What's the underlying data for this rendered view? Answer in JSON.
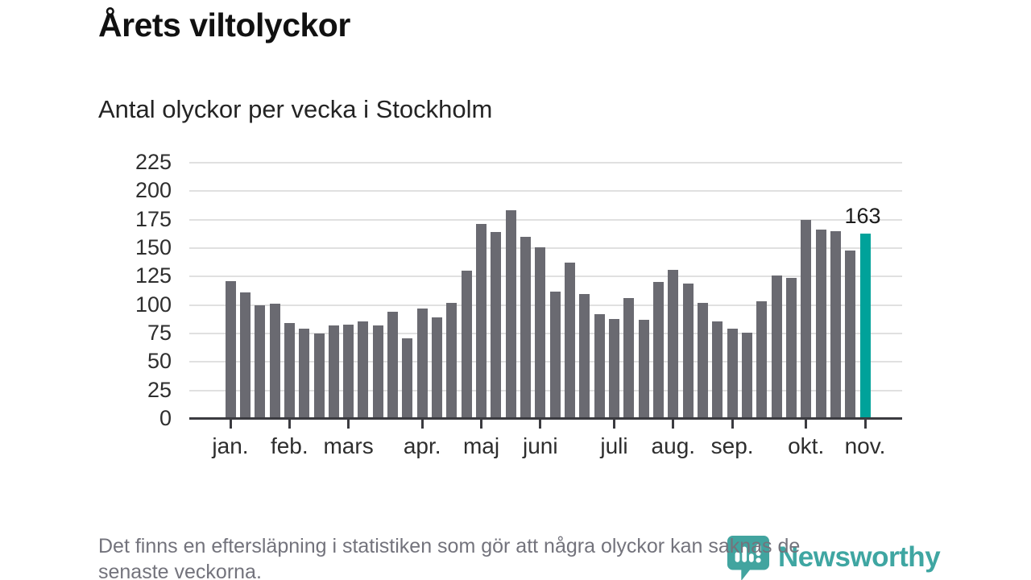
{
  "header": {
    "title": "Årets viltolyckor",
    "subtitle": "Antal olyckor per vecka i Stockholm"
  },
  "chart_data": {
    "type": "bar",
    "title": "Årets viltolyckor",
    "subtitle": "Antal olyckor per vecka i Stockholm",
    "xlabel": "",
    "ylabel": "Antal olyckor per vecka",
    "ylim": [
      0,
      225
    ],
    "ytick_step": 25,
    "yticks": [
      0,
      25,
      50,
      75,
      100,
      125,
      150,
      175,
      200,
      225
    ],
    "grid": true,
    "legend": "none",
    "bar_color": "#6a6a71",
    "highlight_color": "#00a29a",
    "values": [
      121,
      111,
      100,
      101,
      84,
      79,
      75,
      82,
      83,
      86,
      82,
      94,
      71,
      97,
      89,
      102,
      130,
      171,
      164,
      183,
      160,
      151,
      112,
      137,
      110,
      92,
      88,
      106,
      87,
      120,
      131,
      119,
      102,
      86,
      79,
      76,
      103,
      126,
      124,
      175,
      166,
      165,
      148,
      163
    ],
    "highlight_index": 43,
    "annotation": {
      "text": "163",
      "bar_index": 43
    },
    "x_months": [
      {
        "label": "jan.",
        "start_week_index": 0
      },
      {
        "label": "feb.",
        "start_week_index": 4
      },
      {
        "label": "mars",
        "start_week_index": 8
      },
      {
        "label": "apr.",
        "start_week_index": 13
      },
      {
        "label": "maj",
        "start_week_index": 17
      },
      {
        "label": "juni",
        "start_week_index": 21
      },
      {
        "label": "juli",
        "start_week_index": 26
      },
      {
        "label": "aug.",
        "start_week_index": 30
      },
      {
        "label": "sep.",
        "start_week_index": 34
      },
      {
        "label": "okt.",
        "start_week_index": 39
      },
      {
        "label": "nov.",
        "start_week_index": 43
      }
    ]
  },
  "footer": {
    "note_lines": [
      "Det finns en eftersläpning i statistiken som gör att några olyckor kan saknas de",
      "senaste veckorna."
    ],
    "logo": {
      "text": "Newsworthy",
      "brand_color": "#3fa6a2",
      "icon": "newsworthy-pin-icon"
    }
  }
}
